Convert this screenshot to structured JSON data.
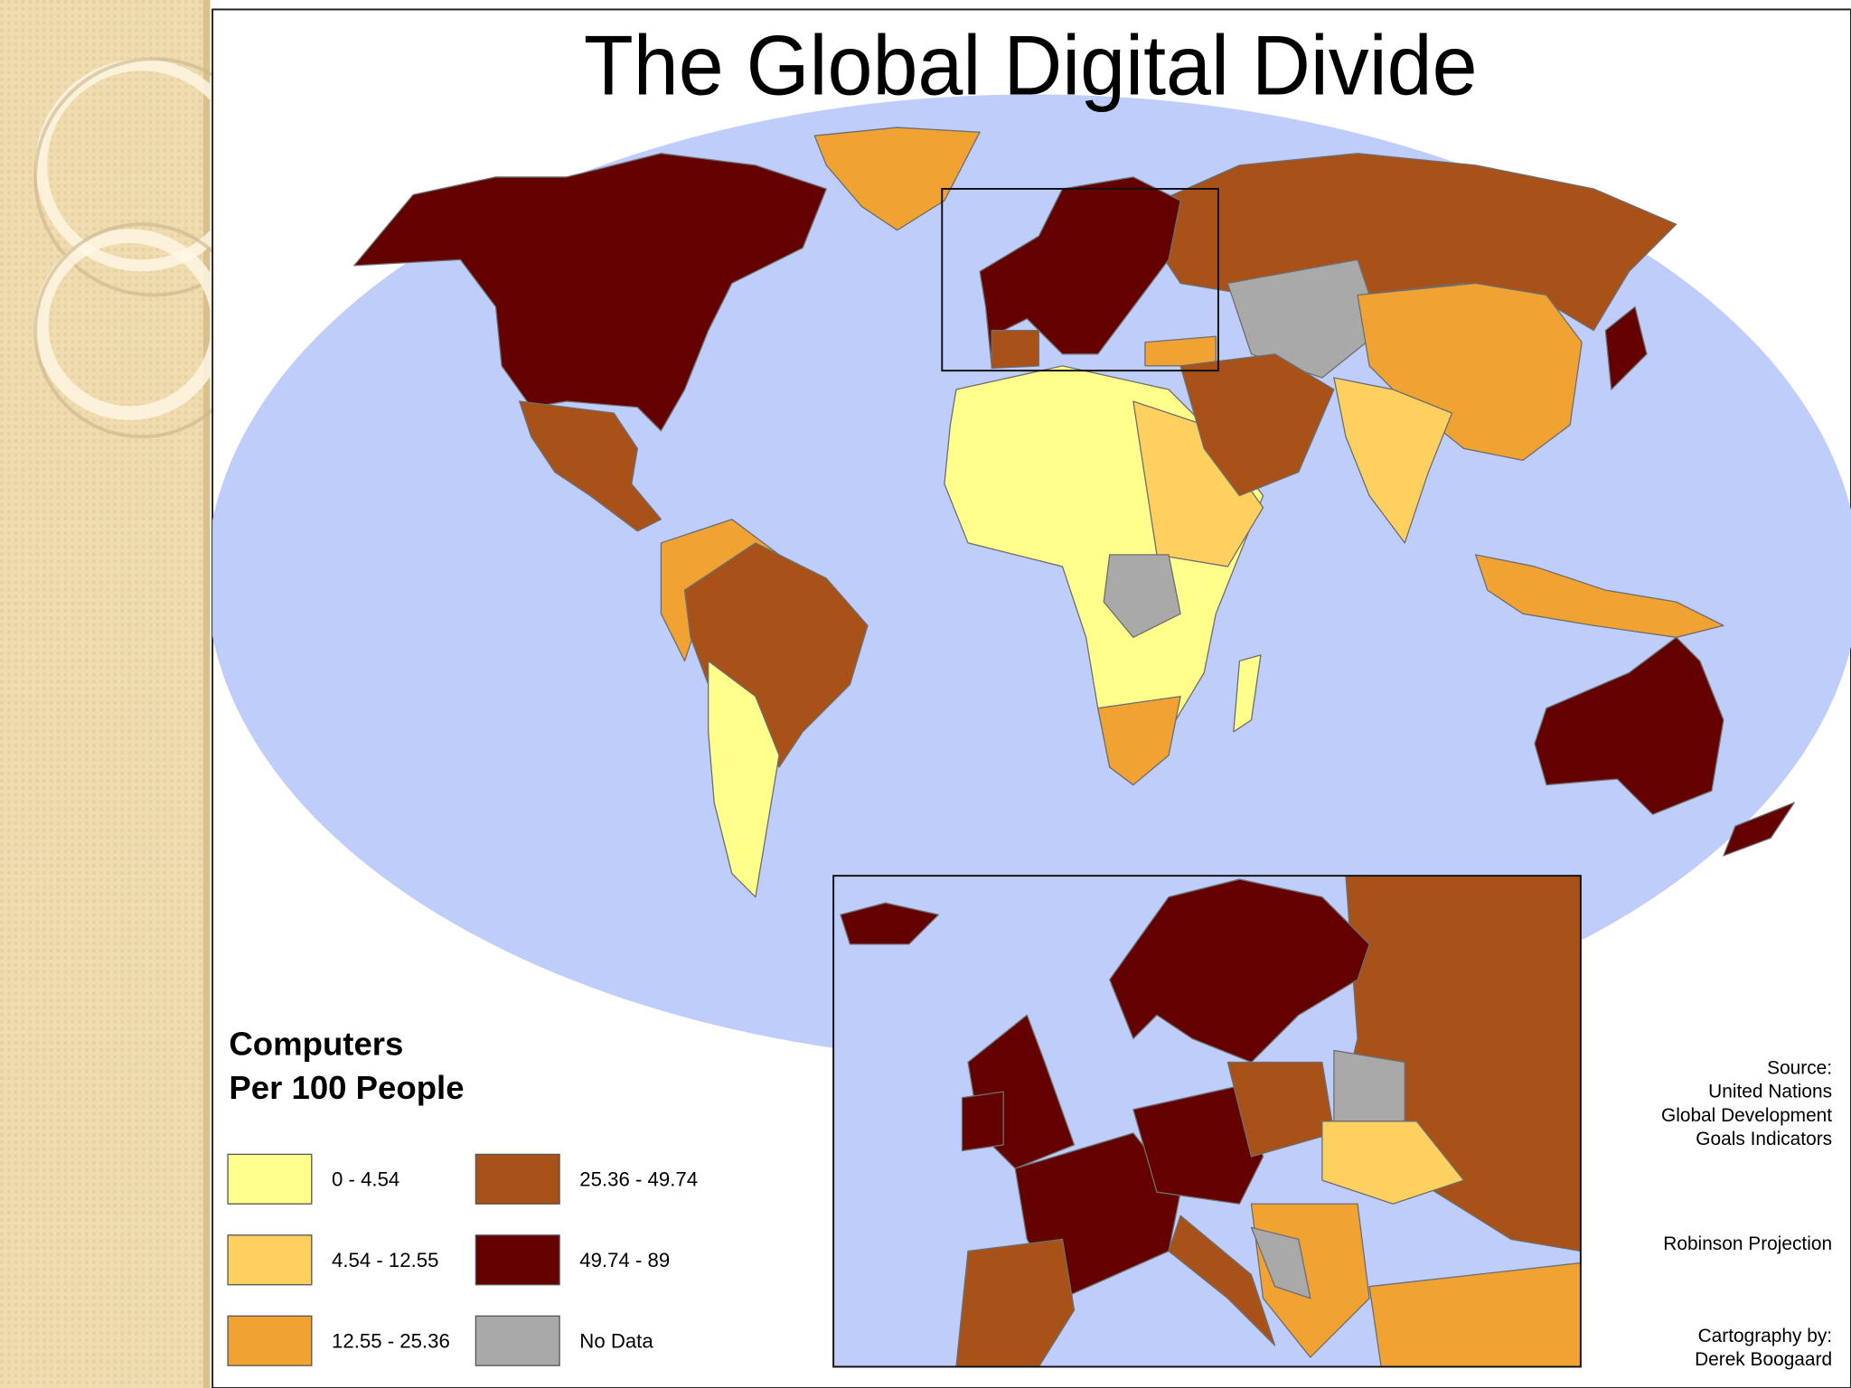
{
  "title": "The Global Digital Divide",
  "legend": {
    "title": [
      "Computers",
      "Per 100 People"
    ],
    "items": [
      {
        "label": "0 - 4.54",
        "color": "#ffff8c"
      },
      {
        "label": "4.54 - 12.55",
        "color": "#fdd060"
      },
      {
        "label": "12.55 - 25.36",
        "color": "#f0a232"
      },
      {
        "label": "25.36 - 49.74",
        "color": "#a8521a"
      },
      {
        "label": "49.74 - 89",
        "color": "#640000"
      },
      {
        "label": "No Data",
        "color": "#a9a9a9"
      }
    ]
  },
  "notes": {
    "source": [
      "Source:",
      "United Nations",
      "Global Development",
      "Goals Indicators"
    ],
    "projection": "Robinson Projection",
    "credit": [
      "Cartography by:",
      "Derek Boogaard"
    ]
  }
}
